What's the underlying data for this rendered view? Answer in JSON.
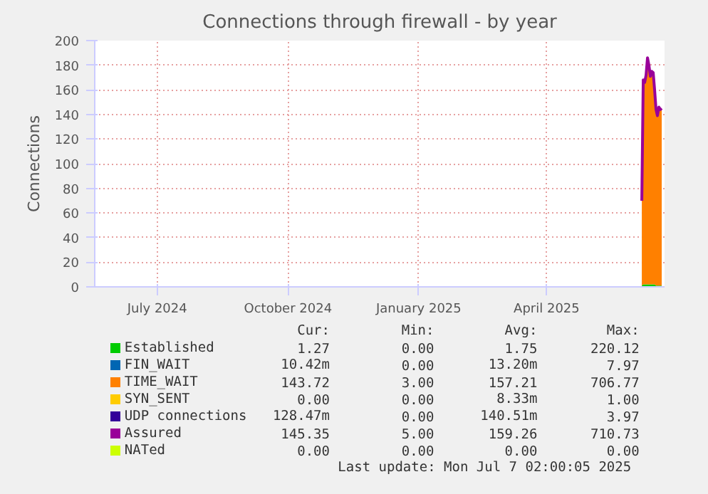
{
  "chart_data": {
    "type": "area",
    "stacked": true,
    "title": "Connections through firewall - by year",
    "ylabel": "Connections",
    "x": [
      "2025-06-22",
      "2025-06-23",
      "2025-06-24",
      "2025-06-25",
      "2025-06-26",
      "2025-06-27",
      "2025-06-28",
      "2025-06-29",
      "2025-06-30",
      "2025-07-01",
      "2025-07-02",
      "2025-07-03",
      "2025-07-04",
      "2025-07-05",
      "2025-07-06"
    ],
    "series": [
      {
        "name": "Established",
        "color": "#00cc00",
        "values": [
          1,
          2,
          2,
          2,
          2,
          2,
          2,
          2,
          2,
          2,
          1,
          1,
          1,
          1,
          1
        ]
      },
      {
        "name": "FIN_WAIT",
        "color": "#0066b3",
        "values": [
          null,
          null,
          null,
          null,
          null,
          null,
          null,
          null,
          null,
          null,
          null,
          null,
          null,
          null,
          null
        ]
      },
      {
        "name": "TIME_WAIT",
        "color": "#ff8000",
        "values": [
          68,
          166,
          164,
          170,
          184,
          178,
          169,
          173,
          172,
          158,
          142,
          137,
          144,
          142,
          143
        ]
      },
      {
        "name": "SYN_SENT",
        "color": "#ffcc00",
        "values": [
          null,
          null,
          null,
          null,
          null,
          null,
          null,
          null,
          null,
          null,
          null,
          null,
          null,
          null,
          null
        ]
      },
      {
        "name": "UDP connections",
        "color": "#330099",
        "values": [
          null,
          null,
          null,
          null,
          null,
          null,
          null,
          null,
          null,
          null,
          null,
          null,
          null,
          null,
          null
        ]
      },
      {
        "name": "Assured",
        "color": "#990099",
        "type": "line",
        "values": [
          70,
          168,
          166,
          172,
          186,
          180,
          171,
          175,
          174,
          160,
          144,
          139,
          146,
          144,
          145
        ]
      },
      {
        "name": "NATed",
        "color": "#ccff00",
        "type": "line",
        "values": [
          null,
          null,
          null,
          null,
          null,
          null,
          null,
          null,
          null,
          null,
          null,
          null,
          null,
          null,
          null
        ]
      }
    ],
    "xlim": [
      "2024-06-02",
      "2025-07-08"
    ],
    "xticks": [
      {
        "value": "2024-07-16",
        "label": "July 2024"
      },
      {
        "value": "2024-10-16",
        "label": "October 2024"
      },
      {
        "value": "2025-01-16",
        "label": "January 2025"
      },
      {
        "value": "2025-04-16",
        "label": "April 2025"
      }
    ],
    "ylim": [
      0,
      200
    ],
    "yticks": [
      0,
      20,
      40,
      60,
      80,
      100,
      120,
      140,
      160,
      180,
      200
    ],
    "grid": true,
    "legend": "bottom",
    "annotations": [
      "Cur:",
      "Min:",
      "Avg:",
      "Max:",
      "1.27",
      "0.00",
      "1.75",
      "220.12",
      "10.42m",
      "0.00",
      "13.20m",
      "7.97",
      "143.72",
      "3.00",
      "157.21",
      "706.77",
      "0.00",
      "0.00",
      "8.33m",
      "1.00",
      "128.47m",
      "0.00",
      "140.51m",
      "3.97",
      "145.35",
      "5.00",
      "159.26",
      "710.73",
      "0.00",
      "0.00",
      "0.00",
      "0.00",
      "Last update: Mon Jul  7 02:00:05 2025"
    ]
  }
}
